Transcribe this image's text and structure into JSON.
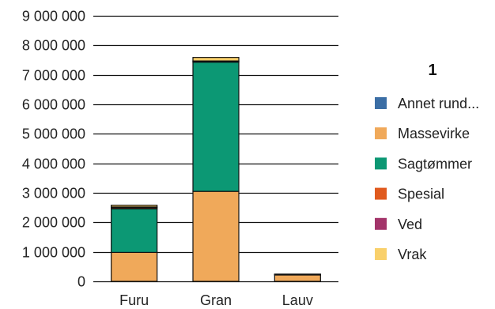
{
  "chart_data": {
    "type": "bar",
    "stacked": true,
    "categories": [
      "Furu",
      "Gran",
      "Lauv"
    ],
    "series": [
      {
        "name": "Annet rund...",
        "color": "#3b6ea5",
        "values": [
          0,
          0,
          0
        ]
      },
      {
        "name": "Massevirke",
        "color": "#f0a95a",
        "values": [
          980000,
          3050000,
          230000
        ]
      },
      {
        "name": "Sagtømmer",
        "color": "#0c9874",
        "values": [
          1480000,
          4380000,
          0
        ]
      },
      {
        "name": "Spesial",
        "color": "#e05a1e",
        "values": [
          40000,
          30000,
          5000
        ]
      },
      {
        "name": "Ved",
        "color": "#a3346a",
        "values": [
          20000,
          10000,
          5000
        ]
      },
      {
        "name": "Vrak",
        "color": "#f9d06b",
        "values": [
          60000,
          120000,
          5000
        ]
      }
    ],
    "ylim": [
      0,
      9000000
    ],
    "yticks": [
      0,
      1000000,
      2000000,
      3000000,
      4000000,
      5000000,
      6000000,
      7000000,
      8000000,
      9000000
    ],
    "ytick_labels": [
      "0",
      "1 000 000",
      "2 000 000",
      "3 000 000",
      "4 000 000",
      "5 000 000",
      "6 000 000",
      "7 000 000",
      "8 000 000",
      "9 000 000"
    ],
    "grid": true,
    "legend": {
      "title": "1",
      "placement": "right"
    }
  }
}
